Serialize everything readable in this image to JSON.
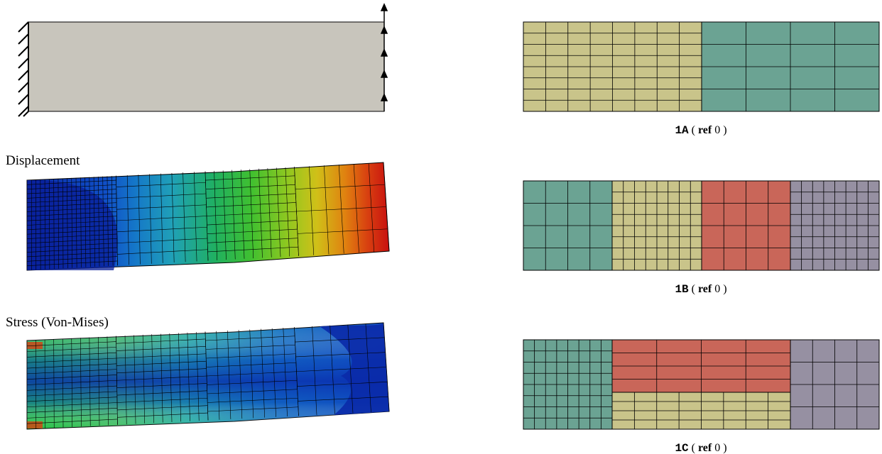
{
  "left": {
    "displacement_label": "Displacement",
    "stress_label": "Stress (Von-Mises)"
  },
  "colors": {
    "beam_gray": "#c8c5bc",
    "mesh_yellow": "#c9c48a",
    "mesh_teal": "#6ba393",
    "mesh_red": "#c96659",
    "mesh_purple": "#9690a2"
  },
  "meshes": [
    {
      "id": "1A",
      "ref_word": "ref",
      "ref_value": "0"
    },
    {
      "id": "1B",
      "ref_word": "ref",
      "ref_value": "0"
    },
    {
      "id": "1C",
      "ref_word": "ref",
      "ref_value": "0"
    }
  ]
}
